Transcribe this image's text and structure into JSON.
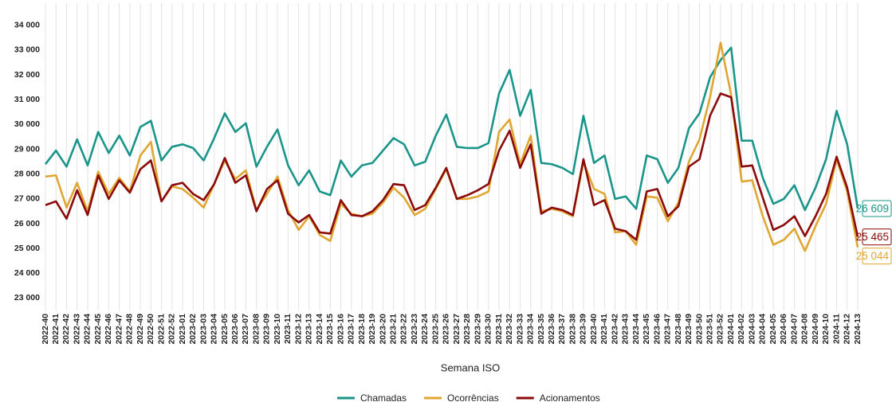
{
  "chart_data": {
    "type": "line",
    "xlabel": "Semana ISO",
    "categories": [
      "2022-40",
      "2022-41",
      "2022-42",
      "2022-43",
      "2022-44",
      "2022-45",
      "2022-46",
      "2022-47",
      "2022-48",
      "2022-49",
      "2022-50",
      "2022-51",
      "2022-52",
      "2023-01",
      "2023-02",
      "2023-03",
      "2023-04",
      "2023-05",
      "2023-06",
      "2023-07",
      "2023-08",
      "2023-09",
      "2023-10",
      "2023-11",
      "2023-12",
      "2023-13",
      "2023-14",
      "2023-15",
      "2023-16",
      "2023-17",
      "2023-18",
      "2023-19",
      "2023-20",
      "2023-21",
      "2023-22",
      "2023-23",
      "2023-24",
      "2023-25",
      "2023-26",
      "2023-27",
      "2023-28",
      "2023-29",
      "2023-30",
      "2023-31",
      "2023-32",
      "2023-33",
      "2023-34",
      "2023-35",
      "2023-36",
      "2023-37",
      "2023-38",
      "2023-39",
      "2023-40",
      "2023-41",
      "2023-42",
      "2023-43",
      "2023-44",
      "2023-45",
      "2023-46",
      "2023-47",
      "2023-48",
      "2023-49",
      "2023-50",
      "2023-51",
      "2023-52",
      "2024-01",
      "2024-02",
      "2024-03",
      "2024-04",
      "2024-05",
      "2024-06",
      "2024-07",
      "2024-08",
      "2024-09",
      "2024-10",
      "2024-11",
      "2024-12",
      "2024-13"
    ],
    "series": [
      {
        "name": "Chamadas",
        "color": "#1a958a",
        "values": [
          28400,
          28950,
          28300,
          29400,
          28350,
          29700,
          28850,
          29550,
          28750,
          29900,
          30150,
          28550,
          29100,
          29200,
          29050,
          28550,
          29450,
          30450,
          29700,
          30050,
          28300,
          29100,
          29800,
          28350,
          27550,
          28150,
          27300,
          27150,
          28550,
          27900,
          28350,
          28450,
          28950,
          29450,
          29200,
          28350,
          28500,
          29550,
          30400,
          29100,
          29050,
          29050,
          29250,
          31250,
          32200,
          30350,
          31400,
          28450,
          28400,
          28250,
          28000,
          30350,
          28450,
          28750,
          27000,
          27100,
          26600,
          28750,
          28600,
          27650,
          28250,
          29850,
          30450,
          31900,
          32600,
          33100,
          29350,
          29350,
          27850,
          26800,
          27000,
          27550,
          26550,
          27450,
          28600,
          30550,
          29200,
          26609
        ],
        "value_labels": [
          null,
          null,
          null,
          null,
          null,
          null,
          null,
          null,
          null,
          null,
          null,
          null,
          null,
          null,
          null,
          null,
          null,
          null,
          null,
          null,
          null,
          null,
          null,
          null,
          null,
          null,
          null,
          null,
          null,
          null,
          null,
          null,
          null,
          null,
          null,
          null,
          null,
          null,
          null,
          null,
          null,
          null,
          null,
          null,
          null,
          null,
          null,
          null,
          null,
          null,
          null,
          null,
          null,
          null,
          null,
          null,
          null,
          null,
          null,
          null,
          null,
          null,
          null,
          null,
          null,
          null,
          null,
          null,
          null,
          null,
          null,
          null,
          null,
          null,
          null,
          null,
          null,
          "26 609"
        ]
      },
      {
        "name": "Ocorrências",
        "color": "#e0a631",
        "values": [
          27900,
          27950,
          26650,
          27650,
          26500,
          28100,
          27200,
          27850,
          27300,
          28750,
          29300,
          26900,
          27500,
          27400,
          27050,
          26650,
          27600,
          28550,
          27800,
          28150,
          26550,
          27200,
          27900,
          26550,
          25750,
          26300,
          25550,
          25300,
          26800,
          26400,
          26300,
          26400,
          26850,
          27450,
          27050,
          26350,
          26600,
          27400,
          28200,
          27000,
          27000,
          27100,
          27300,
          29700,
          30200,
          28400,
          29550,
          26500,
          26600,
          26500,
          26300,
          28500,
          27400,
          27200,
          25650,
          25700,
          25150,
          27100,
          27050,
          26100,
          26850,
          28500,
          29400,
          31100,
          33300,
          31200,
          27700,
          27750,
          26300,
          25150,
          25350,
          25800,
          24900,
          25900,
          26800,
          28600,
          27300,
          25044
        ],
        "value_labels": [
          null,
          null,
          null,
          null,
          null,
          null,
          null,
          null,
          null,
          null,
          null,
          null,
          null,
          null,
          null,
          null,
          null,
          null,
          null,
          null,
          null,
          null,
          null,
          null,
          null,
          null,
          null,
          null,
          null,
          null,
          null,
          null,
          null,
          null,
          null,
          null,
          null,
          null,
          null,
          null,
          null,
          null,
          null,
          null,
          null,
          null,
          null,
          null,
          null,
          null,
          null,
          null,
          null,
          null,
          null,
          null,
          null,
          null,
          null,
          null,
          null,
          null,
          null,
          null,
          null,
          null,
          null,
          null,
          null,
          null,
          null,
          null,
          null,
          null,
          null,
          null,
          null,
          "25 044"
        ]
      },
      {
        "name": "Acionamentos",
        "color": "#8b0a0a",
        "values": [
          26750,
          26900,
          26200,
          27350,
          26350,
          27950,
          27000,
          27750,
          27250,
          28200,
          28550,
          26900,
          27550,
          27650,
          27200,
          26950,
          27600,
          28650,
          27650,
          27950,
          26500,
          27400,
          27750,
          26400,
          26050,
          26350,
          25650,
          25600,
          26950,
          26350,
          26300,
          26500,
          26950,
          27600,
          27550,
          26550,
          26750,
          27450,
          28250,
          27000,
          27150,
          27350,
          27600,
          28950,
          29750,
          28250,
          29200,
          26400,
          26650,
          26550,
          26350,
          28600,
          26750,
          26950,
          25800,
          25700,
          25350,
          27300,
          27400,
          26300,
          26700,
          28300,
          28600,
          30350,
          31250,
          31100,
          28300,
          28350,
          27050,
          25750,
          25950,
          26300,
          25500,
          26300,
          27200,
          28700,
          27450,
          25465
        ],
        "value_labels": [
          null,
          null,
          null,
          null,
          null,
          null,
          null,
          null,
          null,
          null,
          null,
          null,
          null,
          null,
          null,
          null,
          null,
          null,
          null,
          null,
          null,
          null,
          null,
          null,
          null,
          null,
          null,
          null,
          null,
          null,
          null,
          null,
          null,
          null,
          null,
          null,
          null,
          null,
          null,
          null,
          null,
          null,
          null,
          null,
          null,
          null,
          null,
          null,
          null,
          null,
          null,
          null,
          null,
          null,
          null,
          null,
          null,
          null,
          null,
          null,
          null,
          null,
          null,
          null,
          null,
          null,
          null,
          null,
          null,
          null,
          null,
          null,
          null,
          null,
          null,
          null,
          null,
          "25 465"
        ]
      }
    ],
    "ylim": [
      22500,
      34700
    ],
    "yticks": [
      {
        "value": 23000,
        "label": "23 000"
      },
      {
        "value": 24000,
        "label": "24 000"
      },
      {
        "value": 25000,
        "label": "25 000"
      },
      {
        "value": 26000,
        "label": "26 000"
      },
      {
        "value": 27000,
        "label": "27 000"
      },
      {
        "value": 28000,
        "label": "28 000"
      },
      {
        "value": 29000,
        "label": "29 000"
      },
      {
        "value": 30000,
        "label": "30 000"
      },
      {
        "value": 31000,
        "label": "31 000"
      },
      {
        "value": 32000,
        "label": "32 000"
      },
      {
        "value": 33000,
        "label": "33 000"
      },
      {
        "value": 34000,
        "label": "34 000"
      }
    ],
    "grid": "x",
    "legend": "bottom"
  }
}
